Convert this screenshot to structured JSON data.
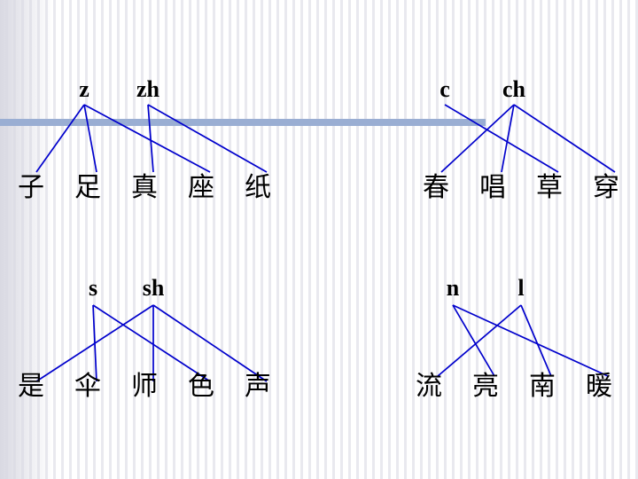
{
  "groups": [
    {
      "initials": [
        "z",
        "zh"
      ],
      "characters": [
        "子",
        "足",
        "真",
        "座",
        "纸"
      ],
      "links": [
        [
          0,
          0
        ],
        [
          0,
          1
        ],
        [
          0,
          3
        ],
        [
          1,
          2
        ],
        [
          1,
          4
        ]
      ]
    },
    {
      "initials": [
        "c",
        "ch"
      ],
      "characters": [
        "春",
        "唱",
        "草",
        "穿"
      ],
      "links": [
        [
          0,
          2
        ],
        [
          1,
          0
        ],
        [
          1,
          1
        ],
        [
          1,
          3
        ]
      ]
    },
    {
      "initials": [
        "s",
        "sh"
      ],
      "characters": [
        "是",
        "伞",
        "师",
        "色",
        "声"
      ],
      "links": [
        [
          0,
          1
        ],
        [
          0,
          3
        ],
        [
          1,
          0
        ],
        [
          1,
          2
        ],
        [
          1,
          4
        ]
      ]
    },
    {
      "initials": [
        "n",
        "l"
      ],
      "characters": [
        "流",
        "亮",
        "南",
        "暖"
      ],
      "links": [
        [
          0,
          1
        ],
        [
          0,
          3
        ],
        [
          1,
          0
        ],
        [
          1,
          2
        ]
      ]
    }
  ],
  "colors": {
    "link": "#0000cc",
    "divider": "#9aaed3"
  }
}
